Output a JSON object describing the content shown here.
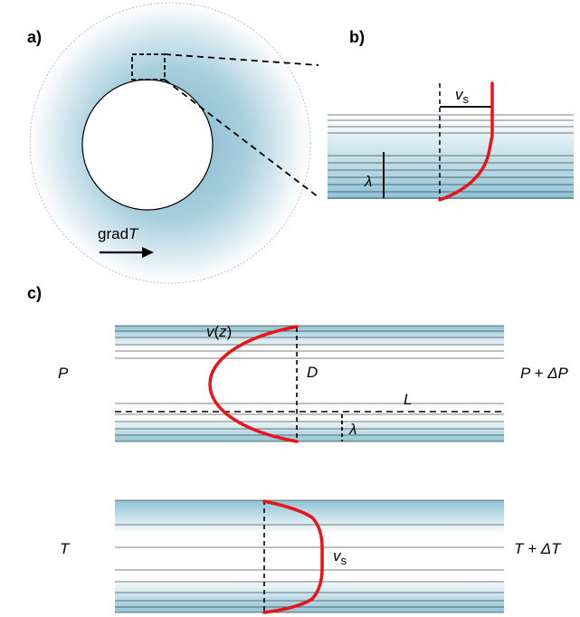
{
  "panels": {
    "a": {
      "label": "a)",
      "gradient_label_prefix": "grad",
      "gradient_label_var": "T"
    },
    "b": {
      "label": "b)",
      "velocity_var": "v",
      "velocity_sub": "s",
      "wavelength_symbol": "λ"
    },
    "c": {
      "label": "c)",
      "upper": {
        "left_label": "P",
        "right_label": "P + ΔP",
        "profile_label_var": "v",
        "profile_label_open": "(",
        "profile_label_arg": "z",
        "profile_label_close": ")",
        "diameter_label": "D",
        "length_label": "L",
        "wavelength_symbol": "λ"
      },
      "lower": {
        "left_label": "T",
        "right_label": "T + ΔT",
        "velocity_var": "v",
        "velocity_sub": "s"
      }
    }
  },
  "colors": {
    "channel_blue": "#a8cfdc",
    "profile_red": "#e8141a",
    "line": "#000000"
  }
}
